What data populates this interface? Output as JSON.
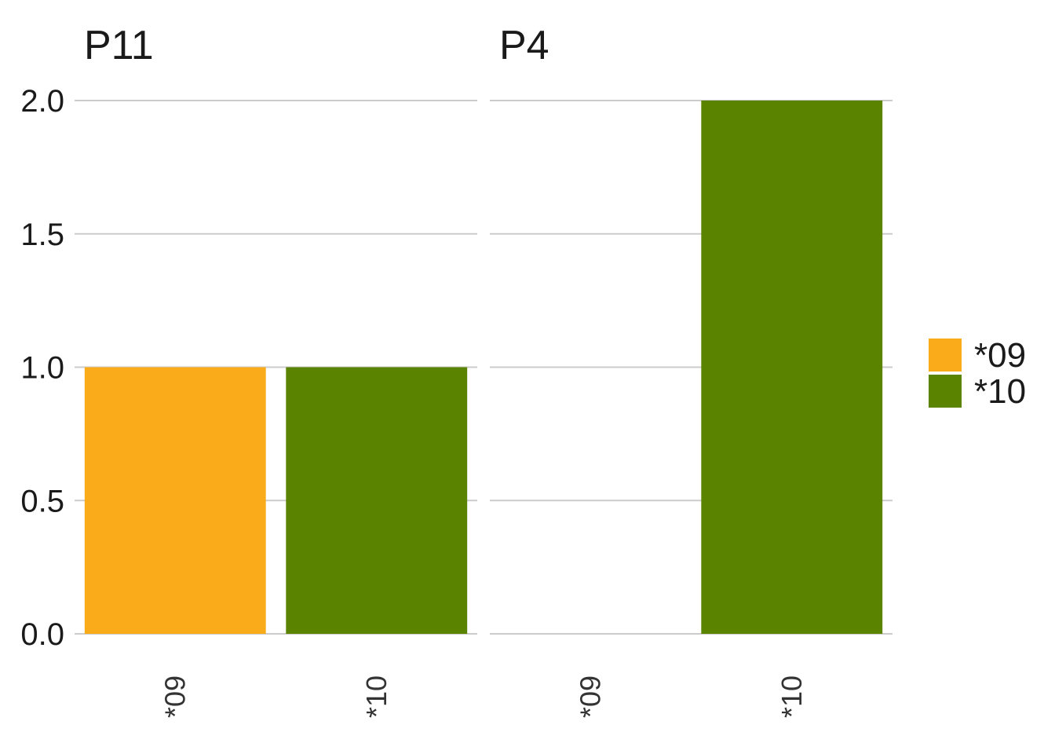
{
  "chart_data": {
    "type": "bar",
    "facets": [
      {
        "title": "P11",
        "categories": [
          "*09",
          "*10"
        ],
        "values": [
          1,
          1
        ]
      },
      {
        "title": "P4",
        "categories": [
          "*09",
          "*10"
        ],
        "values": [
          0,
          2
        ]
      }
    ],
    "ylim": [
      0,
      2
    ],
    "yticks": [
      "0.0",
      "0.5",
      "1.0",
      "1.5",
      "2.0"
    ],
    "ytick_values": [
      0,
      0.5,
      1,
      1.5,
      2
    ],
    "grid": true,
    "legend": {
      "position": "right",
      "entries": [
        {
          "label": "*09",
          "color": "#F9AB19"
        },
        {
          "label": "*10",
          "color": "#5A8400"
        }
      ]
    }
  }
}
